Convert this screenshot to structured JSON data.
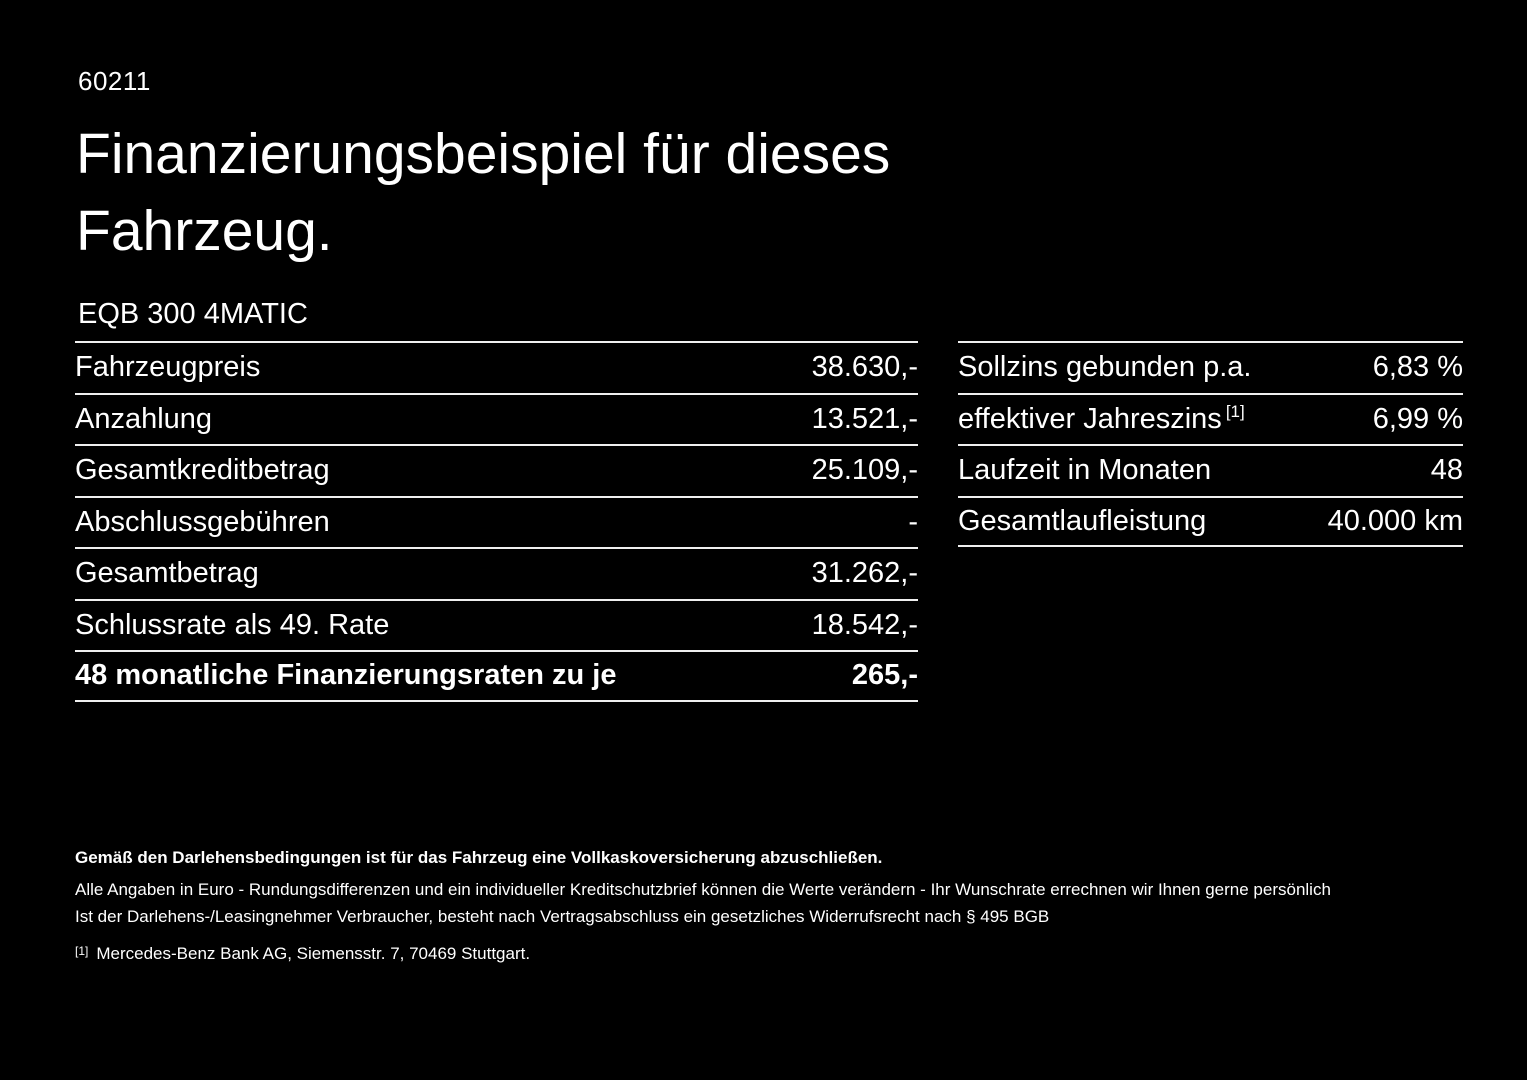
{
  "colors": {
    "background": "#000000",
    "text": "#ffffff",
    "rule": "#efefef"
  },
  "page": {
    "code": "60211",
    "title": "Finanzierungsbeispiel für dieses Fahrzeug.",
    "model": "EQB 300 4MATIC"
  },
  "left_table": {
    "rows": [
      {
        "label": "Fahrzeugpreis",
        "value": "38.630,-"
      },
      {
        "label": "Anzahlung",
        "value": "13.521,-"
      },
      {
        "label": "Gesamtkreditbetrag",
        "value": "25.109,-"
      },
      {
        "label": "Abschlussgebühren",
        "value": "-"
      },
      {
        "label": "Gesamtbetrag",
        "value": "31.262,-"
      },
      {
        "label": "Schlussrate als 49. Rate",
        "value": "18.542,-"
      },
      {
        "label": "48 monatliche Finanzierungsraten zu je",
        "value": "265,-"
      }
    ]
  },
  "right_table": {
    "rows": [
      {
        "label": "Sollzins gebunden p.a.",
        "value": "6,83 %"
      },
      {
        "label": "effektiver Jahreszins",
        "sup": "[1]",
        "value": "6,99 %"
      },
      {
        "label": "Laufzeit in Monaten",
        "value": "48"
      },
      {
        "label": "Gesamtlaufleistung",
        "value": "40.000 km"
      }
    ]
  },
  "footer": {
    "bold_note": "Gemäß den Darlehensbedingungen ist für das Fahrzeug eine Vollkaskoversicherung abzuschließen.",
    "line1": "Alle Angaben in Euro - Rundungsdifferenzen und ein individueller Kreditschutzbrief können die Werte verändern - Ihr Wunschrate errechnen wir Ihnen gerne persönlich",
    "line2": "Ist der Darlehens-/Leasingnehmer Verbraucher, besteht nach Vertragsabschluss ein gesetzliches Widerrufsrecht nach § 495 BGB",
    "footnote_marker": "[1]",
    "footnote_text": "Mercedes-Benz Bank AG, Siemensstr. 7, 70469 Stuttgart."
  }
}
